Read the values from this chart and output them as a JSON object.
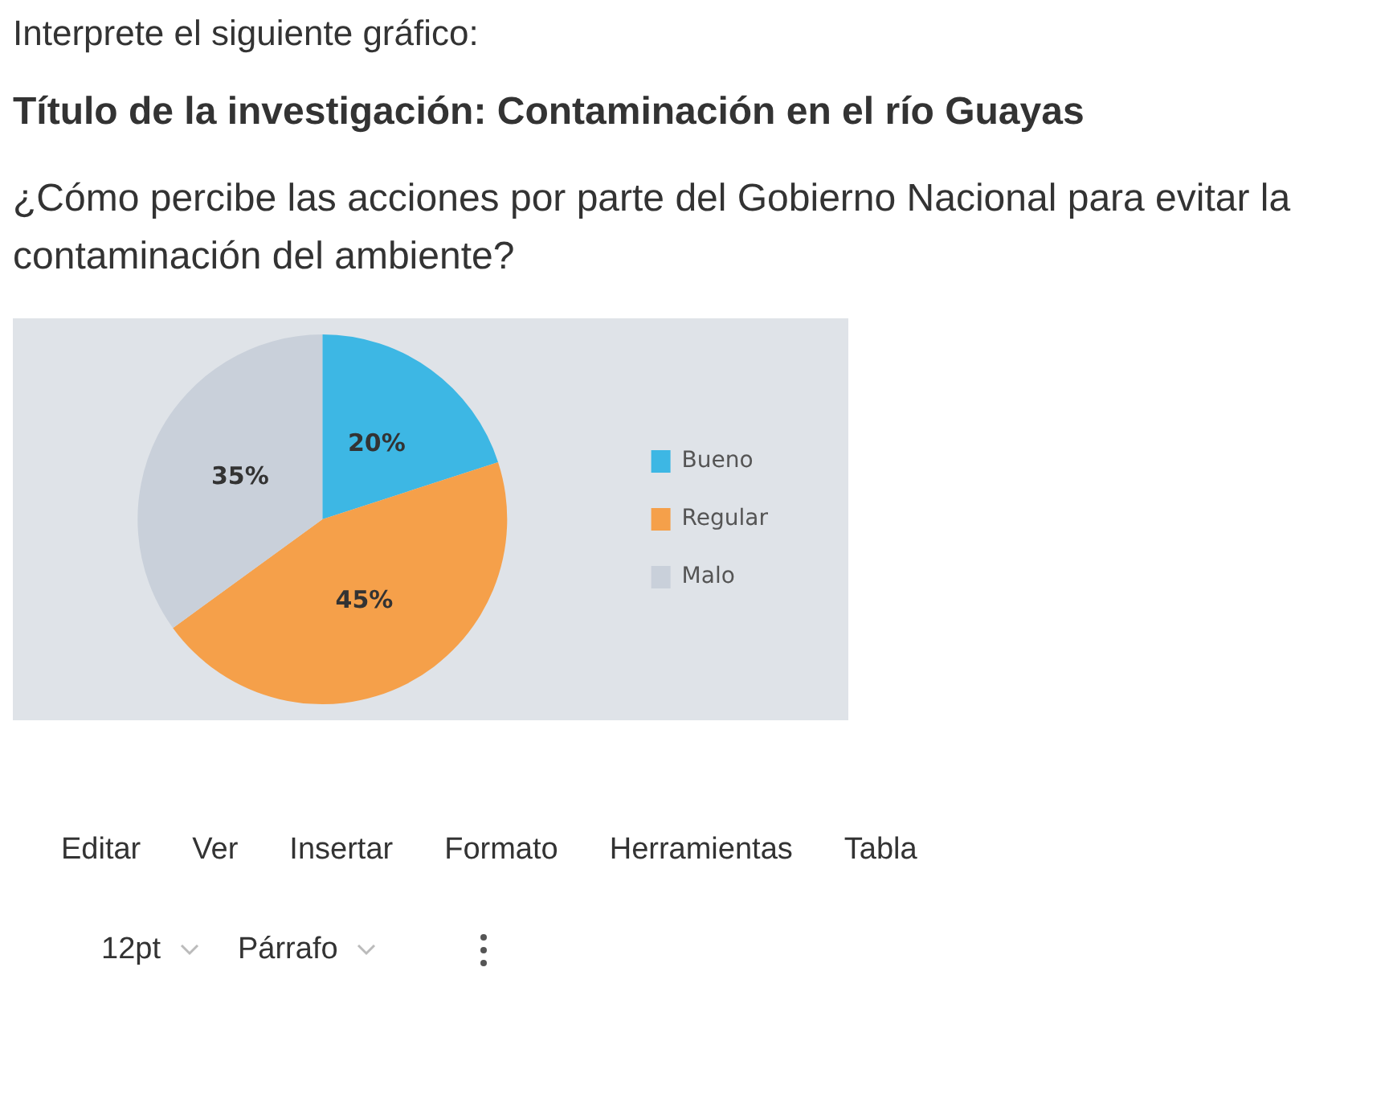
{
  "chart_data": {
    "type": "pie",
    "title": "Título de la investigación: Contaminación en el río Guayas",
    "subtitle": "¿Cómo percibe las acciones por parte del Gobierno Nacional para evitar la contaminación del ambiente?",
    "categories": [
      "Bueno",
      "Regular",
      "Malo"
    ],
    "values": [
      20,
      45,
      35
    ],
    "colors": [
      "#3db7e4",
      "#f5a04a",
      "#c9d0da"
    ],
    "value_labels": [
      "20%",
      "45%",
      "35%"
    ],
    "legend": "right",
    "annotations": [
      "Interprete el siguiente gráfico:",
      "Editar",
      "Ver",
      "Insertar",
      "Formato",
      "Herramientas",
      "Tabla",
      "12pt",
      "Párrafo"
    ]
  }
}
